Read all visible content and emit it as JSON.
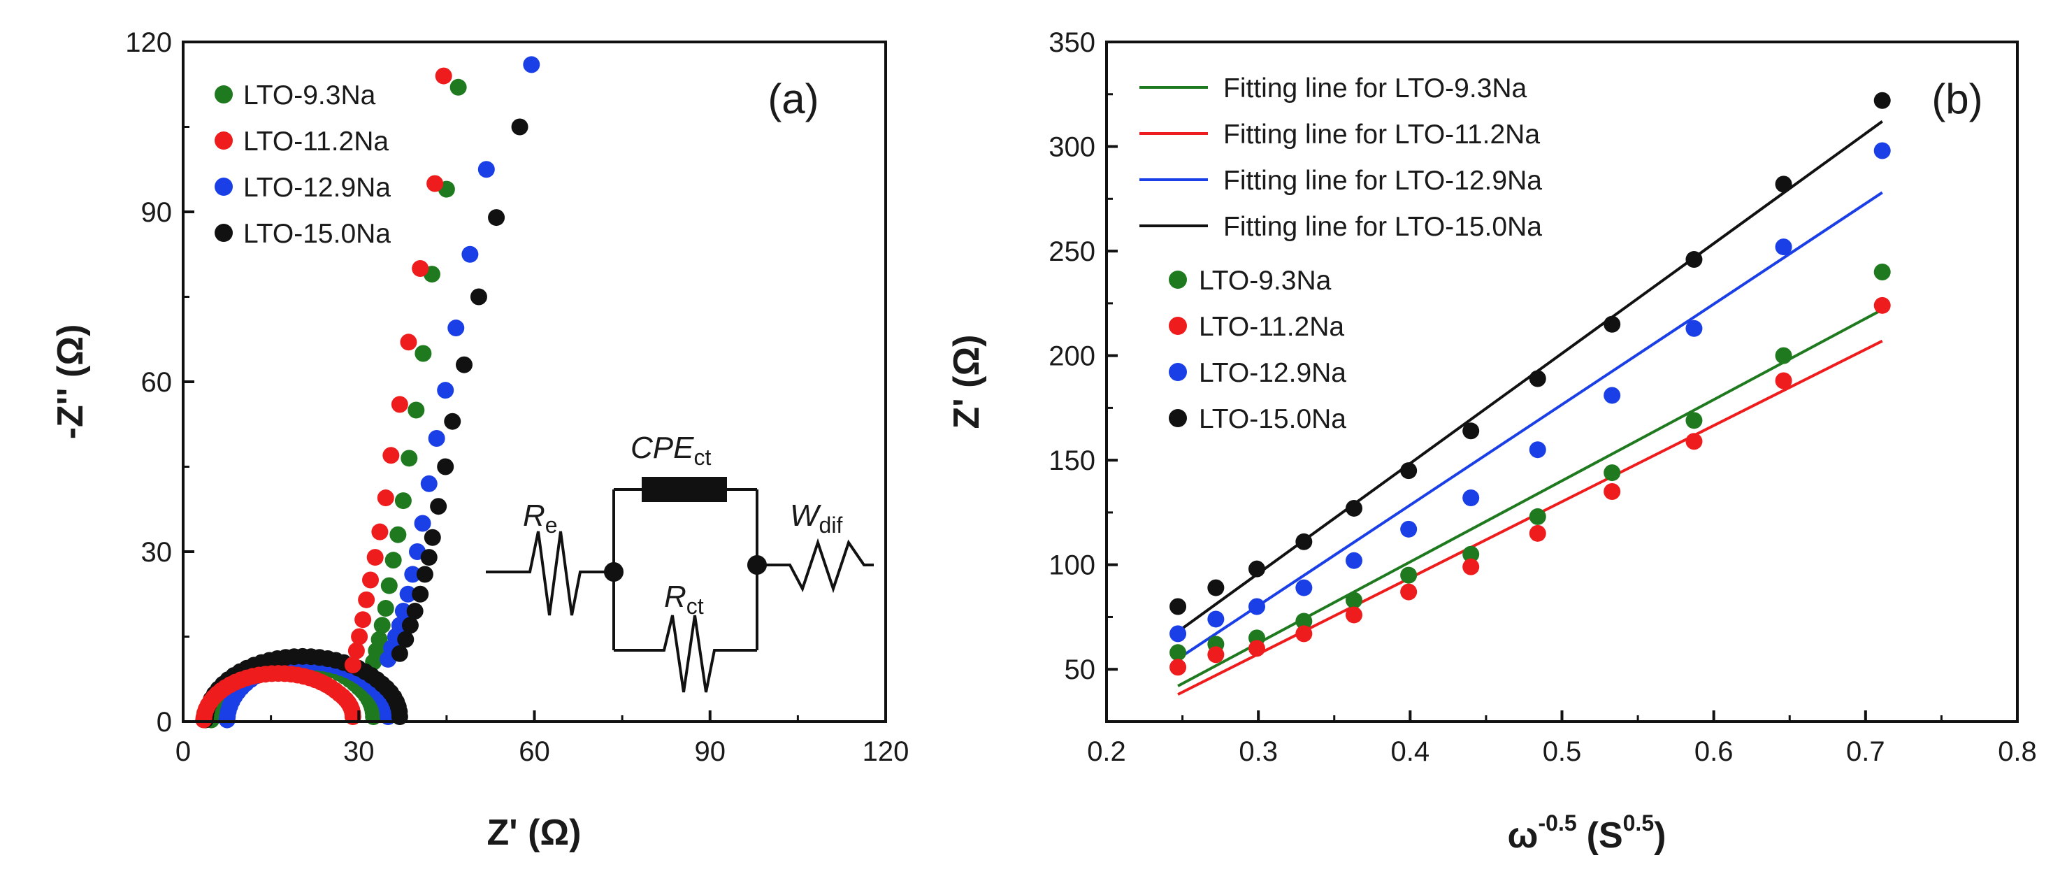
{
  "chart_data": [
    {
      "panel_label": "(a)",
      "type": "scatter",
      "xlabel": "Z' (Ω)",
      "ylabel": "-Z'' (Ω)",
      "xlim": [
        0,
        120
      ],
      "ylim": [
        0,
        120
      ],
      "xticks": [
        "0",
        "30",
        "60",
        "90",
        "120"
      ],
      "yticks": [
        "0",
        "30",
        "60",
        "90",
        "120"
      ],
      "legend_position": "top-left",
      "series": [
        {
          "name": "LTO-9.3Na",
          "color": "#1f7a1f",
          "arc": {
            "start": 4.8,
            "end": 32.5,
            "peak": 10.5
          },
          "points": [
            [
              32.5,
              10.5
            ],
            [
              33.0,
              12.5
            ],
            [
              33.5,
              14.5
            ],
            [
              34.0,
              17
            ],
            [
              34.6,
              20
            ],
            [
              35.2,
              24
            ],
            [
              35.9,
              28.5
            ],
            [
              36.7,
              33
            ],
            [
              37.6,
              39
            ],
            [
              38.6,
              46.5
            ],
            [
              39.8,
              55
            ],
            [
              41.0,
              65
            ],
            [
              42.5,
              79
            ],
            [
              45.0,
              94
            ],
            [
              47.0,
              112
            ]
          ]
        },
        {
          "name": "LTO-11.2Na",
          "color": "#ee1c1c",
          "arc": {
            "start": 3.5,
            "end": 29.0,
            "peak": 8.5
          },
          "points": [
            [
              29.0,
              10
            ],
            [
              29.6,
              12.5
            ],
            [
              30.1,
              15
            ],
            [
              30.7,
              18
            ],
            [
              31.3,
              21.5
            ],
            [
              32.0,
              25
            ],
            [
              32.8,
              29
            ],
            [
              33.6,
              33.5
            ],
            [
              34.6,
              39.5
            ],
            [
              35.5,
              47
            ],
            [
              37.0,
              56
            ],
            [
              38.5,
              67
            ],
            [
              40.5,
              80
            ],
            [
              43.0,
              95
            ],
            [
              44.5,
              114
            ]
          ]
        },
        {
          "name": "LTO-12.9Na",
          "color": "#1a3fe6",
          "arc": {
            "start": 7.5,
            "end": 35.0,
            "peak": 10.5
          },
          "points": [
            [
              35.0,
              11
            ],
            [
              35.6,
              13
            ],
            [
              36.3,
              15
            ],
            [
              37.0,
              17
            ],
            [
              37.6,
              19.5
            ],
            [
              38.4,
              22.5
            ],
            [
              39.2,
              26
            ],
            [
              40.0,
              30
            ],
            [
              40.9,
              35
            ],
            [
              42.0,
              42
            ],
            [
              43.3,
              50
            ],
            [
              44.8,
              58.5
            ],
            [
              46.6,
              69.5
            ],
            [
              49.0,
              82.5
            ],
            [
              51.8,
              97.5
            ],
            [
              59.5,
              116
            ]
          ]
        },
        {
          "name": "LTO-15.0Na",
          "color": "#111111",
          "arc": {
            "start": 3.8,
            "end": 37.0,
            "peak": 11.5
          },
          "points": [
            [
              37.0,
              12
            ],
            [
              38.0,
              14.5
            ],
            [
              38.8,
              17
            ],
            [
              39.6,
              19.5
            ],
            [
              40.5,
              22.5
            ],
            [
              41.3,
              26
            ],
            [
              42.0,
              29
            ],
            [
              42.6,
              32.5
            ],
            [
              43.6,
              38
            ],
            [
              44.8,
              45
            ],
            [
              46.0,
              53
            ],
            [
              48.0,
              63
            ],
            [
              50.5,
              75
            ],
            [
              53.5,
              89
            ],
            [
              57.5,
              105
            ]
          ]
        }
      ],
      "inset_circuit": {
        "labels": [
          {
            "main": "R",
            "sub": "e"
          },
          {
            "main": "CPE",
            "sub": "ct"
          },
          {
            "main": "R",
            "sub": "ct"
          },
          {
            "main": "W",
            "sub": "dif"
          }
        ]
      }
    },
    {
      "panel_label": "(b)",
      "type": "scatter",
      "xlabel": "ω",
      "xlabel_sup1": "-0.5",
      "xlabel_unit": "(S",
      "xlabel_sup2": "0.5",
      "xlabel_close": ")",
      "ylabel": "Z' (Ω)",
      "xlim": [
        0.2,
        0.8
      ],
      "ylim": [
        25,
        350
      ],
      "xticks": [
        "0.2",
        "0.3",
        "0.4",
        "0.5",
        "0.6",
        "0.7",
        "0.8"
      ],
      "yticks": [
        "50",
        "100",
        "150",
        "200",
        "250",
        "300",
        "350"
      ],
      "x": [
        0.247,
        0.272,
        0.299,
        0.33,
        0.363,
        0.399,
        0.44,
        0.484,
        0.533,
        0.587,
        0.646,
        0.711
      ],
      "legend_position": "top-left",
      "fit_lines": [
        {
          "name": "Fitting line for LTO-9.3Na",
          "color": "#1f7a1f",
          "x": [
            0.247,
            0.711
          ],
          "y": [
            42,
            222
          ]
        },
        {
          "name": "Fitting line for LTO-11.2Na",
          "color": "#ee1c1c",
          "x": [
            0.247,
            0.711
          ],
          "y": [
            38,
            207
          ]
        },
        {
          "name": "Fitting line for LTO-12.9Na",
          "color": "#1a3fe6",
          "x": [
            0.247,
            0.711
          ],
          "y": [
            55,
            278
          ]
        },
        {
          "name": "Fitting line for LTO-15.0Na",
          "color": "#111111",
          "x": [
            0.247,
            0.711
          ],
          "y": [
            68,
            312
          ]
        }
      ],
      "series": [
        {
          "name": "LTO-9.3Na",
          "color": "#1f7a1f",
          "values": [
            58,
            62,
            65,
            73,
            83,
            95,
            105,
            123,
            144,
            169,
            200,
            240
          ]
        },
        {
          "name": "LTO-11.2Na",
          "color": "#ee1c1c",
          "values": [
            51,
            57,
            60,
            67,
            76,
            87,
            99,
            115,
            135,
            159,
            188,
            224
          ]
        },
        {
          "name": "LTO-12.9Na",
          "color": "#1a3fe6",
          "values": [
            67,
            74,
            80,
            89,
            102,
            117,
            132,
            155,
            181,
            213,
            252,
            298
          ]
        },
        {
          "name": "LTO-15.0Na",
          "color": "#111111",
          "values": [
            80,
            89,
            98,
            111,
            127,
            145,
            164,
            189,
            215,
            246,
            282,
            322
          ]
        }
      ]
    }
  ]
}
